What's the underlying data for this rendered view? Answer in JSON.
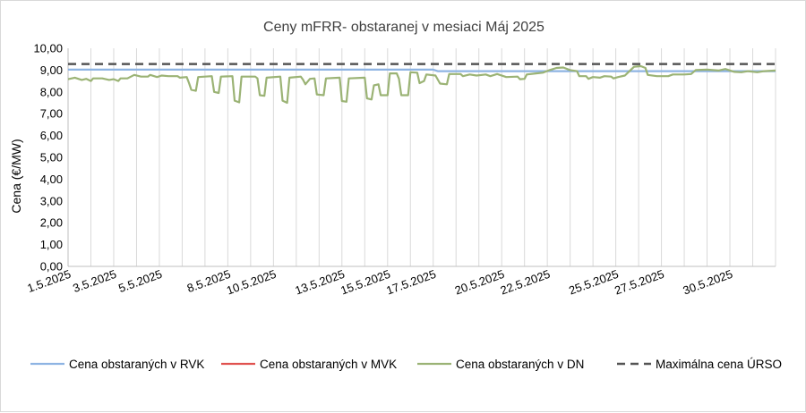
{
  "chart_data": {
    "type": "line",
    "title": "Ceny mFRR- obstaranej v mesiaci Máj 2025",
    "ylabel": "Cena (€/MW)",
    "xlabel": "",
    "ylim": [
      0,
      10
    ],
    "y_ticks": [
      "0,00",
      "1,00",
      "2,00",
      "3,00",
      "4,00",
      "5,00",
      "6,00",
      "7,00",
      "8,00",
      "9,00",
      "10,00"
    ],
    "x_range_days": [
      1,
      32
    ],
    "x_tick_labels": [
      {
        "label": "1.5.2025",
        "day": 1
      },
      {
        "label": "3.5.2025",
        "day": 3
      },
      {
        "label": "5.5.2025",
        "day": 5
      },
      {
        "label": "8.5.2025",
        "day": 8
      },
      {
        "label": "10.5.2025",
        "day": 10
      },
      {
        "label": "13.5.2025",
        "day": 13
      },
      {
        "label": "15.5.2025",
        "day": 15
      },
      {
        "label": "17.5.2025",
        "day": 17
      },
      {
        "label": "20.5.2025",
        "day": 20
      },
      {
        "label": "22.5.2025",
        "day": 22
      },
      {
        "label": "25.5.2025",
        "day": 25
      },
      {
        "label": "27.5.2025",
        "day": 27
      },
      {
        "label": "30.5.2025",
        "day": 30
      }
    ],
    "grid": "vertical",
    "legend_position": "bottom",
    "series": [
      {
        "name": "Cena obstaraných v RVK",
        "color": "#8eb4e3",
        "style": "solid",
        "points": [
          [
            1,
            9.02
          ],
          [
            17,
            9.02
          ],
          [
            17.2,
            8.95
          ],
          [
            32,
            8.95
          ]
        ]
      },
      {
        "name": "Cena obstaraných v MVK",
        "color": "#e0524f",
        "style": "solid",
        "points": []
      },
      {
        "name": "Cena obstaraných v DN",
        "color": "#9bb375",
        "style": "solid",
        "points": [
          [
            1,
            8.58
          ],
          [
            1.3,
            8.65
          ],
          [
            1.6,
            8.55
          ],
          [
            1.8,
            8.6
          ],
          [
            2,
            8.5
          ],
          [
            2.1,
            8.62
          ],
          [
            2.5,
            8.62
          ],
          [
            2.8,
            8.55
          ],
          [
            3,
            8.58
          ],
          [
            3.2,
            8.5
          ],
          [
            3.3,
            8.62
          ],
          [
            3.6,
            8.62
          ],
          [
            3.9,
            8.78
          ],
          [
            4.2,
            8.7
          ],
          [
            4.5,
            8.7
          ],
          [
            4.6,
            8.78
          ],
          [
            4.9,
            8.68
          ],
          [
            5.1,
            8.75
          ],
          [
            5.4,
            8.72
          ],
          [
            5.8,
            8.72
          ],
          [
            5.9,
            8.65
          ],
          [
            6.2,
            8.68
          ],
          [
            6.3,
            8.4
          ],
          [
            6.4,
            8.1
          ],
          [
            6.6,
            8.05
          ],
          [
            6.7,
            8.68
          ],
          [
            7.3,
            8.72
          ],
          [
            7.4,
            8.0
          ],
          [
            7.6,
            7.95
          ],
          [
            7.7,
            8.7
          ],
          [
            8.2,
            8.72
          ],
          [
            8.3,
            7.6
          ],
          [
            8.5,
            7.52
          ],
          [
            8.6,
            8.7
          ],
          [
            9.2,
            8.7
          ],
          [
            9.3,
            8.62
          ],
          [
            9.4,
            7.85
          ],
          [
            9.6,
            7.82
          ],
          [
            9.7,
            8.65
          ],
          [
            10.3,
            8.7
          ],
          [
            10.4,
            7.6
          ],
          [
            10.6,
            7.5
          ],
          [
            10.7,
            8.65
          ],
          [
            11.2,
            8.7
          ],
          [
            11.3,
            8.55
          ],
          [
            11.4,
            8.35
          ],
          [
            11.6,
            8.6
          ],
          [
            11.8,
            8.62
          ],
          [
            11.9,
            7.88
          ],
          [
            12.2,
            7.85
          ],
          [
            12.3,
            8.62
          ],
          [
            12.9,
            8.65
          ],
          [
            13,
            7.58
          ],
          [
            13.2,
            7.55
          ],
          [
            13.3,
            8.62
          ],
          [
            14,
            8.65
          ],
          [
            14.1,
            7.7
          ],
          [
            14.3,
            7.65
          ],
          [
            14.4,
            8.3
          ],
          [
            14.6,
            8.35
          ],
          [
            14.7,
            7.85
          ],
          [
            15,
            7.85
          ],
          [
            15.1,
            8.85
          ],
          [
            15.4,
            8.85
          ],
          [
            15.5,
            8.6
          ],
          [
            15.6,
            7.85
          ],
          [
            15.9,
            7.85
          ],
          [
            16,
            8.9
          ],
          [
            16.3,
            8.88
          ],
          [
            16.4,
            8.4
          ],
          [
            16.6,
            8.5
          ],
          [
            16.7,
            8.8
          ],
          [
            17.1,
            8.75
          ],
          [
            17.3,
            8.38
          ],
          [
            17.6,
            8.35
          ],
          [
            17.7,
            8.82
          ],
          [
            18.2,
            8.82
          ],
          [
            18.3,
            8.72
          ],
          [
            18.6,
            8.8
          ],
          [
            18.9,
            8.75
          ],
          [
            19.3,
            8.8
          ],
          [
            19.5,
            8.72
          ],
          [
            19.8,
            8.82
          ],
          [
            20.2,
            8.68
          ],
          [
            20.7,
            8.7
          ],
          [
            20.8,
            8.58
          ],
          [
            21,
            8.6
          ],
          [
            21.1,
            8.8
          ],
          [
            21.5,
            8.85
          ],
          [
            21.8,
            8.88
          ],
          [
            22.1,
            9.0
          ],
          [
            22.4,
            9.1
          ],
          [
            22.7,
            9.12
          ],
          [
            23,
            9.0
          ],
          [
            23.3,
            8.95
          ],
          [
            23.4,
            8.72
          ],
          [
            23.7,
            8.72
          ],
          [
            23.8,
            8.6
          ],
          [
            24,
            8.68
          ],
          [
            24.3,
            8.65
          ],
          [
            24.5,
            8.72
          ],
          [
            24.8,
            8.7
          ],
          [
            24.9,
            8.62
          ],
          [
            25.1,
            8.68
          ],
          [
            25.4,
            8.75
          ],
          [
            25.6,
            8.95
          ],
          [
            25.8,
            9.15
          ],
          [
            26.1,
            9.18
          ],
          [
            26.3,
            9.1
          ],
          [
            26.4,
            8.78
          ],
          [
            26.8,
            8.72
          ],
          [
            27,
            8.72
          ],
          [
            27.3,
            8.72
          ],
          [
            27.5,
            8.8
          ],
          [
            28,
            8.8
          ],
          [
            28.3,
            8.82
          ],
          [
            28.5,
            9.0
          ],
          [
            29,
            9.02
          ],
          [
            29.5,
            8.98
          ],
          [
            29.8,
            9.05
          ],
          [
            30.2,
            8.92
          ],
          [
            30.5,
            8.9
          ],
          [
            30.8,
            8.95
          ],
          [
            31.2,
            8.9
          ],
          [
            31.5,
            8.95
          ],
          [
            32,
            8.98
          ]
        ]
      },
      {
        "name": "Maximálna cena ÚRSO",
        "color": "#555555",
        "style": "dashed",
        "points": [
          [
            1,
            9.28
          ],
          [
            32,
            9.28
          ]
        ]
      }
    ]
  }
}
